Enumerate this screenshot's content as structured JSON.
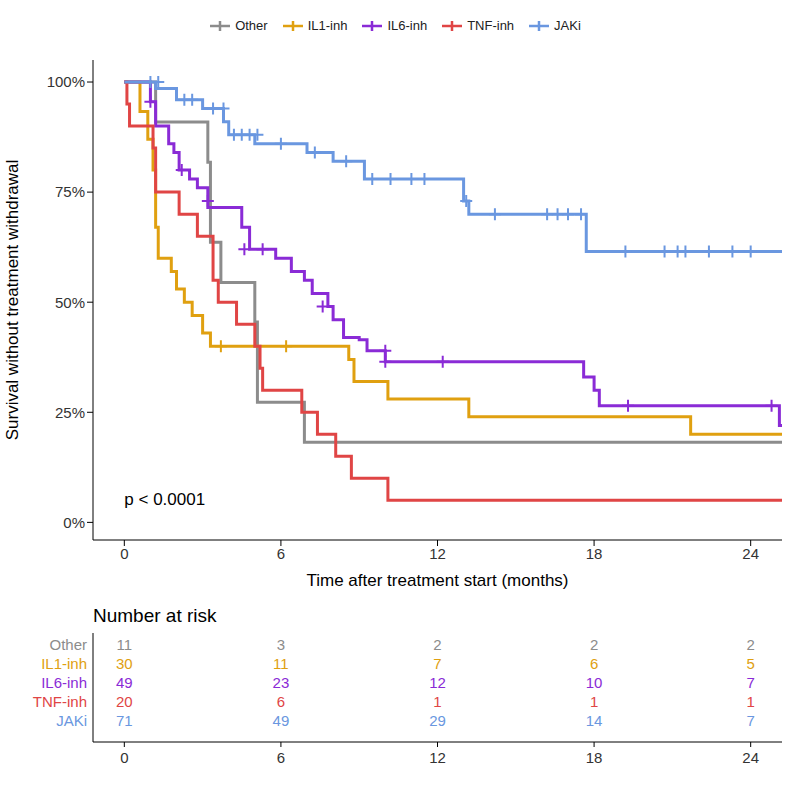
{
  "chart_data": {
    "type": "line",
    "line_style": "step",
    "marker": "plus",
    "legend": "top",
    "x_label": "Time after treatment start (months)",
    "y_label": "Survival without treatment withdrawal",
    "annotation": "p < 0.0001",
    "xlim": [
      -1.2,
      25.2
    ],
    "xticks": [
      0,
      6,
      12,
      18,
      24
    ],
    "ylim": [
      -4,
      105
    ],
    "yticks": [
      {
        "value": 0,
        "label": "0%"
      },
      {
        "value": 25,
        "label": "25%"
      },
      {
        "value": 50,
        "label": "50%"
      },
      {
        "value": 75,
        "label": "75%"
      },
      {
        "value": 100,
        "label": "100%"
      }
    ],
    "grid": false,
    "series": [
      {
        "name": "Other",
        "color": "#8C8C8C",
        "x": [
          0,
          1.2,
          3.2,
          3.3,
          3.7,
          5.0,
          5.1,
          6.9,
          25.2
        ],
        "values": [
          100,
          90.9,
          81.8,
          63.6,
          54.5,
          45.5,
          27.3,
          18.2,
          18.2
        ],
        "censored": {
          "x": [],
          "values": []
        }
      },
      {
        "name": "IL1-inh",
        "color": "#E0A010",
        "x": [
          0,
          0.6,
          0.9,
          1.1,
          1.2,
          1.3,
          1.8,
          2.0,
          2.3,
          2.6,
          3.0,
          3.3,
          8.6,
          8.8,
          10.1,
          13.2,
          21.7,
          25.2
        ],
        "values": [
          100,
          93.3,
          87,
          80,
          67,
          60,
          57,
          53,
          50,
          47,
          43,
          40,
          37,
          32,
          28,
          24,
          20,
          20
        ],
        "censored": {
          "x": [
            3.7,
            6.2
          ],
          "values": [
            40,
            40
          ]
        }
      },
      {
        "name": "IL6-inh",
        "color": "#8A2BD6",
        "x": [
          0,
          1.0,
          1.2,
          1.7,
          1.9,
          2.1,
          2.5,
          2.8,
          3.2,
          4.5,
          4.8,
          5.8,
          6.4,
          6.9,
          7.2,
          7.8,
          8.0,
          8.4,
          9.0,
          9.3,
          10.0,
          17.6,
          18.0,
          18.2,
          25.1,
          25.2
        ],
        "values": [
          100,
          95.5,
          90,
          86,
          84,
          80,
          78,
          76,
          71.5,
          67,
          62,
          60,
          57,
          55,
          52,
          49,
          46,
          42,
          41.5,
          39,
          36.5,
          33,
          30,
          26.5,
          22,
          22
        ],
        "censored": {
          "x": [
            1.0,
            2.2,
            3.2,
            4.6,
            5.3,
            7.6,
            10.0,
            10.0,
            12.2,
            19.3,
            24.8
          ],
          "values": [
            95.5,
            80,
            73,
            62,
            62,
            49,
            39,
            36.5,
            36.5,
            26.5,
            26.5
          ]
        }
      },
      {
        "name": "TNF-inh",
        "color": "#E04545",
        "x": [
          0,
          0.1,
          0.2,
          1.1,
          1.2,
          2.1,
          2.8,
          3.4,
          3.6,
          4.3,
          5.0,
          5.2,
          5.3,
          6.8,
          7.4,
          8.1,
          8.7,
          10.1,
          25.2
        ],
        "values": [
          100,
          95,
          90,
          85,
          75,
          70,
          65,
          55,
          50,
          45,
          40,
          35,
          30,
          25,
          20,
          15,
          10,
          5,
          5
        ],
        "censored": {
          "x": [],
          "values": []
        }
      },
      {
        "name": "JAKi",
        "color": "#6A97E0",
        "x": [
          0,
          1.2,
          2.0,
          3.0,
          3.8,
          4.0,
          5.0,
          7.0,
          8.0,
          9.2,
          13.0,
          13.2,
          17.7,
          25.2
        ],
        "values": [
          100,
          98.5,
          96,
          94,
          91,
          88,
          86,
          84,
          82,
          78,
          73,
          70,
          61.5,
          61.5
        ],
        "censored": {
          "x": [
            1.0,
            1.3,
            2.3,
            2.6,
            3.4,
            3.8,
            4.2,
            4.5,
            4.8,
            5.1,
            6.0,
            7.3,
            8.5,
            9.5,
            10.2,
            11.0,
            11.5,
            13.1,
            14.2,
            16.2,
            16.6,
            17.0,
            17.5,
            19.2,
            20.7,
            21.2,
            21.5,
            22.4,
            23.3,
            24.0
          ],
          "values": [
            100,
            100,
            96,
            96,
            94,
            94,
            88,
            88,
            88,
            88,
            86,
            84,
            82,
            78,
            78,
            78,
            78,
            73,
            70,
            70,
            70,
            70,
            70,
            61.5,
            61.5,
            61.5,
            61.5,
            61.5,
            61.5,
            61.5
          ]
        }
      }
    ],
    "risk_table": {
      "title": "Number at risk",
      "x": [
        0,
        6,
        12,
        18,
        24
      ],
      "rows": [
        {
          "name": "Other",
          "values": [
            11,
            3,
            2,
            2,
            2
          ]
        },
        {
          "name": "IL1-inh",
          "values": [
            30,
            11,
            7,
            6,
            5
          ]
        },
        {
          "name": "IL6-inh",
          "values": [
            49,
            23,
            12,
            10,
            7
          ]
        },
        {
          "name": "TNF-inh",
          "values": [
            20,
            6,
            1,
            1,
            1
          ]
        },
        {
          "name": "JAKi",
          "values": [
            71,
            49,
            29,
            14,
            7
          ]
        }
      ]
    }
  }
}
